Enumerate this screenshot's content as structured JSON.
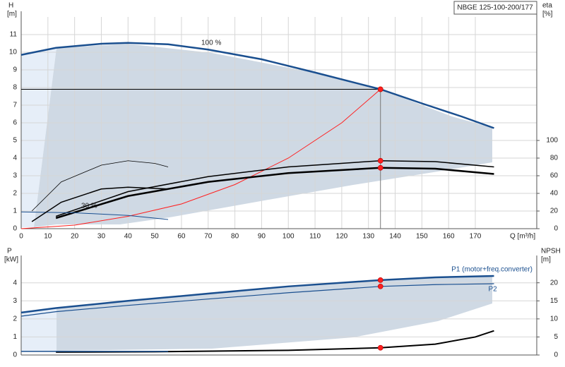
{
  "chart_data": [
    {
      "type": "line",
      "title": "NBGE 125-100-200/177",
      "xlabel": "Q [m³/h]",
      "ylabel": "H",
      "ylabel_unit": "[m]",
      "y2label": "eta",
      "y2label_unit": "[%]",
      "xlim": [
        0,
        193
      ],
      "ylim": [
        0,
        12
      ],
      "y2lim": [
        0,
        240
      ],
      "xticks": [
        0,
        10,
        20,
        30,
        40,
        50,
        60,
        70,
        80,
        90,
        100,
        110,
        120,
        130,
        140,
        150,
        160,
        170
      ],
      "yticks": [
        0,
        1,
        2,
        3,
        4,
        5,
        6,
        7,
        8,
        9,
        10,
        11
      ],
      "y2ticks": [
        0,
        20,
        40,
        60,
        80,
        100
      ],
      "grid": true,
      "duty_point": {
        "x": 134.5,
        "y": 7.9
      },
      "annotations": [
        "100 %",
        "30 %"
      ],
      "series": [
        {
          "color": "#1a4f8f",
          "line_width": 2.5,
          "x": [
            0,
            13,
            30,
            40,
            55,
            70,
            90,
            110,
            134.5,
            150,
            165,
            177
          ],
          "values": [
            9.85,
            10.25,
            10.48,
            10.53,
            10.45,
            10.15,
            9.6,
            8.85,
            7.9,
            7.1,
            6.35,
            5.7
          ]
        },
        {
          "color": "#ff2020",
          "line_width": 1,
          "x": [
            0,
            20,
            40,
            60,
            80,
            100,
            120,
            134.5
          ],
          "values": [
            0,
            0.2,
            0.7,
            1.4,
            2.5,
            4.0,
            6.0,
            7.9
          ]
        },
        {
          "color": "#000000",
          "line_width": 1.5,
          "axis": "y2",
          "x": [
            13,
            40,
            70,
            100,
            134.5,
            155,
            177
          ],
          "values": [
            14,
            42,
            59,
            70,
            77,
            76,
            70
          ]
        },
        {
          "color": "#000000",
          "line_width": 2.5,
          "axis": "y2",
          "x": [
            13,
            40,
            70,
            100,
            134.5,
            155,
            177
          ],
          "values": [
            12,
            37,
            53,
            63,
            69,
            68,
            62
          ]
        },
        {
          "color": "#1a4f8f",
          "line_width": 1,
          "x": [
            0,
            20,
            40,
            55
          ],
          "values": [
            0.95,
            0.9,
            0.75,
            0.52
          ]
        },
        {
          "color": "#000000",
          "line_width": 0.8,
          "axis": "y2",
          "x": [
            4,
            15,
            30,
            40,
            50,
            55
          ],
          "values": [
            20,
            53,
            72,
            77,
            74,
            70
          ]
        },
        {
          "color": "#000000",
          "line_width": 1.5,
          "axis": "y2",
          "x": [
            4,
            15,
            30,
            40,
            55
          ],
          "values": [
            8,
            30,
            45,
            47,
            45
          ]
        }
      ]
    },
    {
      "type": "line",
      "ylabel": "P",
      "ylabel_unit": "[kW]",
      "y2label": "NPSH",
      "y2label_unit": "[m]",
      "xlim": [
        0,
        193
      ],
      "ylim": [
        0,
        5.2
      ],
      "y2lim": [
        0,
        26
      ],
      "yticks": [
        0,
        1,
        2,
        3,
        4
      ],
      "y2ticks": [
        0,
        5,
        10,
        15,
        20
      ],
      "grid": true,
      "series": [
        {
          "name": "P1 (motor+freq.converter)",
          "color": "#1a4f8f",
          "line_width": 2.5,
          "x": [
            0,
            13,
            40,
            70,
            100,
            134.5,
            155,
            177
          ],
          "values": [
            2.35,
            2.6,
            3.0,
            3.4,
            3.8,
            4.15,
            4.3,
            4.38
          ]
        },
        {
          "name": "P2",
          "color": "#1a4f8f",
          "line_width": 1.2,
          "x": [
            0,
            13,
            40,
            70,
            100,
            134.5,
            155,
            177
          ],
          "values": [
            2.15,
            2.4,
            2.75,
            3.1,
            3.45,
            3.8,
            3.9,
            3.95
          ]
        },
        {
          "color": "#000000",
          "line_width": 2,
          "axis": "y2",
          "x": [
            13,
            50,
            100,
            134.5,
            155,
            170,
            177
          ],
          "values": [
            0.8,
            0.9,
            1.3,
            2.0,
            3.0,
            5.0,
            6.7
          ]
        },
        {
          "color": "#1a4f8f",
          "line_width": 1.5,
          "x": [
            0,
            55
          ],
          "values": [
            0.2,
            0.2
          ]
        }
      ]
    }
  ]
}
